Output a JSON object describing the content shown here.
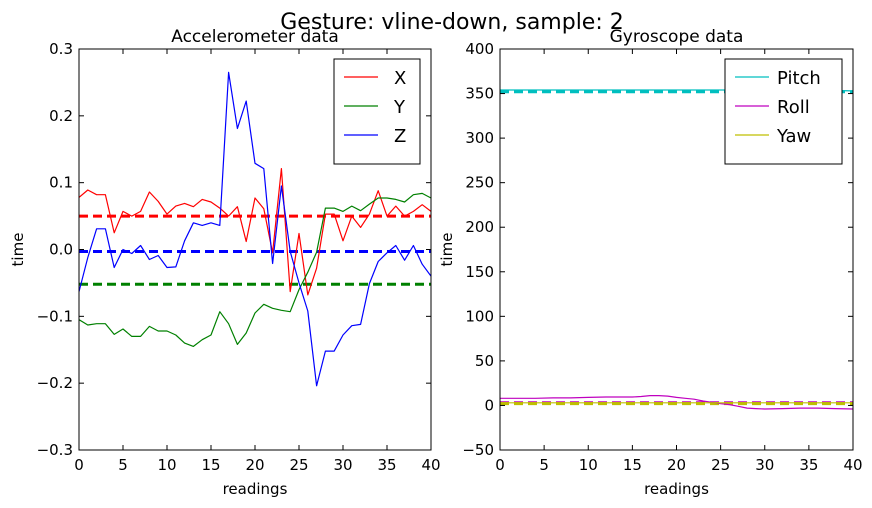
{
  "suptitle": "Gesture: vline-down, sample: 2",
  "chart_data": [
    {
      "type": "line",
      "title": "Accelerometer data",
      "xlabel": "readings",
      "ylabel": "time",
      "xlim": [
        0,
        40
      ],
      "ylim": [
        -0.3,
        0.3
      ],
      "xticks": [
        0,
        5,
        10,
        15,
        20,
        25,
        30,
        35,
        40
      ],
      "yticks": [
        -0.3,
        -0.2,
        -0.1,
        0.0,
        0.1,
        0.2,
        0.3
      ],
      "ytick_labels": [
        "−0.3",
        "−0.2",
        "−0.1",
        "0.0",
        "0.1",
        "0.2",
        "0.3"
      ],
      "legend": "top-right",
      "series": [
        {
          "name": "X",
          "color": "#ff0000",
          "x": [
            0,
            1,
            2,
            3,
            4,
            5,
            6,
            7,
            8,
            9,
            10,
            11,
            12,
            13,
            14,
            15,
            16,
            17,
            18,
            19,
            20,
            21,
            22,
            23,
            24,
            25,
            26,
            27,
            28,
            29,
            30,
            31,
            32,
            33,
            34,
            35,
            36,
            37,
            38,
            39,
            40
          ],
          "y": [
            0.078,
            0.089,
            0.082,
            0.082,
            0.025,
            0.057,
            0.05,
            0.057,
            0.086,
            0.072,
            0.053,
            0.065,
            0.069,
            0.064,
            0.075,
            0.071,
            0.062,
            0.05,
            0.064,
            0.012,
            0.077,
            0.061,
            -0.005,
            0.121,
            -0.063,
            0.024,
            -0.068,
            -0.028,
            0.053,
            0.053,
            0.013,
            0.05,
            0.033,
            0.053,
            0.088,
            0.05,
            0.065,
            0.05,
            0.057,
            0.067,
            0.057
          ]
        },
        {
          "name": "Y",
          "color": "#008000",
          "x": [
            0,
            1,
            2,
            3,
            4,
            5,
            6,
            7,
            8,
            9,
            10,
            11,
            12,
            13,
            14,
            15,
            16,
            17,
            18,
            19,
            20,
            21,
            22,
            23,
            24,
            25,
            26,
            27,
            28,
            29,
            30,
            31,
            32,
            33,
            34,
            35,
            36,
            37,
            38,
            39,
            40
          ],
          "y": [
            -0.105,
            -0.113,
            -0.111,
            -0.111,
            -0.127,
            -0.119,
            -0.13,
            -0.13,
            -0.115,
            -0.122,
            -0.122,
            -0.128,
            -0.14,
            -0.145,
            -0.135,
            -0.128,
            -0.093,
            -0.111,
            -0.142,
            -0.125,
            -0.095,
            -0.082,
            -0.088,
            -0.091,
            -0.093,
            -0.06,
            -0.034,
            -0.004,
            0.062,
            0.062,
            0.057,
            0.065,
            0.058,
            0.068,
            0.077,
            0.077,
            0.075,
            0.071,
            0.082,
            0.084,
            0.077
          ]
        },
        {
          "name": "Z",
          "color": "#0000ff",
          "x": [
            0,
            1,
            2,
            3,
            4,
            5,
            6,
            7,
            8,
            9,
            10,
            11,
            12,
            13,
            14,
            15,
            16,
            17,
            18,
            19,
            20,
            21,
            22,
            23,
            24,
            25,
            26,
            27,
            28,
            29,
            30,
            31,
            32,
            33,
            34,
            35,
            36,
            37,
            38,
            39,
            40
          ],
          "y": [
            -0.063,
            -0.012,
            0.031,
            0.031,
            -0.027,
            0.0,
            -0.006,
            0.006,
            -0.015,
            -0.009,
            -0.027,
            -0.026,
            0.013,
            0.04,
            0.036,
            0.04,
            0.036,
            0.265,
            0.181,
            0.222,
            0.129,
            0.121,
            -0.021,
            0.095,
            -0.003,
            -0.05,
            -0.092,
            -0.204,
            -0.152,
            -0.152,
            -0.128,
            -0.114,
            -0.112,
            -0.051,
            -0.018,
            -0.005,
            0.006,
            -0.016,
            0.006,
            -0.022,
            -0.04
          ]
        }
      ],
      "reference_lines": [
        {
          "series": "X",
          "y": 0.05,
          "color": "#ff0000",
          "style": "dashed"
        },
        {
          "series": "Y",
          "y": -0.052,
          "color": "#008000",
          "style": "dashed"
        },
        {
          "series": "Z",
          "y": -0.003,
          "color": "#0000ff",
          "style": "dashed"
        }
      ]
    },
    {
      "type": "line",
      "title": "Gyroscope data",
      "xlabel": "readings",
      "ylabel": "time",
      "xlim": [
        0,
        40
      ],
      "ylim": [
        -50,
        400
      ],
      "xticks": [
        0,
        5,
        10,
        15,
        20,
        25,
        30,
        35,
        40
      ],
      "yticks": [
        -50,
        0,
        50,
        100,
        150,
        200,
        250,
        300,
        350,
        400
      ],
      "ytick_labels": [
        "−50",
        "0",
        "50",
        "100",
        "150",
        "200",
        "250",
        "300",
        "350",
        "400"
      ],
      "legend": "top-right",
      "series": [
        {
          "name": "Pitch",
          "color": "#00bfbf",
          "x": [
            0,
            5,
            10,
            15,
            20,
            25,
            30,
            35,
            40
          ],
          "y": [
            354,
            354,
            354,
            354,
            354,
            354,
            354,
            354,
            353
          ]
        },
        {
          "name": "Roll",
          "color": "#bf00bf",
          "x": [
            0,
            2,
            4,
            6,
            8,
            10,
            12,
            14,
            15,
            16,
            17,
            18,
            19,
            20,
            21,
            22,
            23,
            24,
            25,
            26,
            27,
            28,
            29,
            30,
            32,
            34,
            36,
            38,
            40
          ],
          "y": [
            8,
            8,
            8,
            8.5,
            8.5,
            9,
            9.5,
            9.5,
            9.5,
            10,
            11,
            11,
            10.5,
            9,
            8,
            7,
            5,
            3.5,
            2,
            1,
            -1,
            -3,
            -3.5,
            -4,
            -3.5,
            -3,
            -3,
            -3.5,
            -4
          ]
        },
        {
          "name": "Yaw",
          "color": "#bfbf00",
          "x": [
            0,
            5,
            10,
            15,
            20,
            25,
            30,
            35,
            40
          ],
          "y": [
            3,
            3,
            3,
            3,
            3,
            3,
            3,
            3,
            3
          ]
        }
      ],
      "reference_lines": [
        {
          "series": "Pitch",
          "y": 352,
          "color": "#00bfbf",
          "style": "dashed"
        },
        {
          "series": "Roll",
          "y": 3,
          "color": "#bf00bf",
          "style": "dashed"
        },
        {
          "series": "Yaw",
          "y": 2,
          "color": "#bfbf00",
          "style": "dashed"
        }
      ]
    }
  ]
}
